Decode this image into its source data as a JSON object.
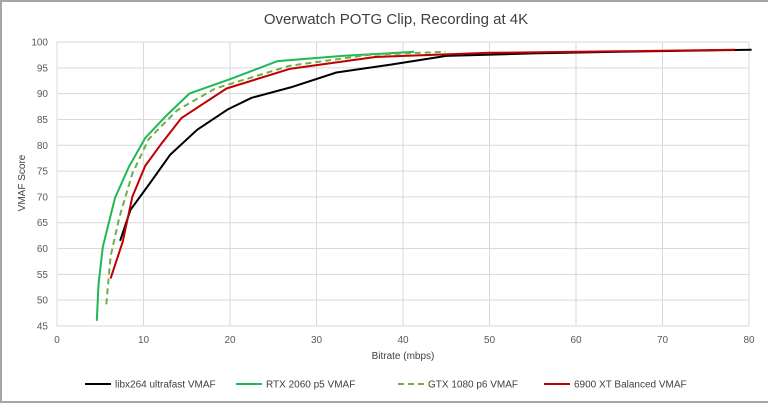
{
  "chart_data": {
    "type": "line",
    "title": "Overwatch POTG Clip, Recording at 4K",
    "xlabel": "Bitrate (mbps)",
    "ylabel": "VMAF Score",
    "xlim": [
      0,
      80
    ],
    "ylim": [
      45,
      100
    ],
    "xticks": [
      0,
      10,
      20,
      30,
      40,
      50,
      60,
      70,
      80
    ],
    "yticks": [
      45,
      50,
      55,
      60,
      65,
      70,
      75,
      80,
      85,
      90,
      95,
      100
    ],
    "grid": true,
    "legend_position": "bottom",
    "series": [
      {
        "name": "libx264 ultrafast VMAF",
        "color": "#000000",
        "dash": false,
        "points": [
          [
            7.3,
            61.5
          ],
          [
            8.5,
            67.5
          ],
          [
            10.8,
            72.8
          ],
          [
            13.1,
            78.2
          ],
          [
            16.2,
            83.0
          ],
          [
            19.8,
            87.0
          ],
          [
            22.5,
            89.2
          ],
          [
            27.0,
            91.2
          ],
          [
            32.3,
            94.1
          ],
          [
            38.5,
            95.6
          ],
          [
            45.0,
            97.3
          ],
          [
            55.0,
            97.8
          ],
          [
            65.0,
            98.1
          ],
          [
            80.3,
            98.5
          ]
        ]
      },
      {
        "name": "RTX 2060 p5 VMAF",
        "color": "#1db954",
        "dash": false,
        "points": [
          [
            4.6,
            46.0
          ],
          [
            4.8,
            53.0
          ],
          [
            5.3,
            60.3
          ],
          [
            6.7,
            69.8
          ],
          [
            8.3,
            75.8
          ],
          [
            10.2,
            81.4
          ],
          [
            12.5,
            85.5
          ],
          [
            15.3,
            90.0
          ],
          [
            20.0,
            92.8
          ],
          [
            25.5,
            96.3
          ],
          [
            33.0,
            97.3
          ],
          [
            41.3,
            98.1
          ]
        ]
      },
      {
        "name": "GTX 1080 p6 VMAF",
        "color": "#70ad47",
        "dash": true,
        "points": [
          [
            5.7,
            49.2
          ],
          [
            6.2,
            58.5
          ],
          [
            7.2,
            66.0
          ],
          [
            8.7,
            74.5
          ],
          [
            10.6,
            81.2
          ],
          [
            13.9,
            86.8
          ],
          [
            18.3,
            91.0
          ],
          [
            26.9,
            95.4
          ],
          [
            36.0,
            97.5
          ],
          [
            44.9,
            98.1
          ]
        ]
      },
      {
        "name": "6900 XT Balanced VMAF",
        "color": "#c00000",
        "dash": false,
        "points": [
          [
            6.2,
            54.2
          ],
          [
            7.6,
            61.3
          ],
          [
            8.7,
            70.0
          ],
          [
            10.2,
            76.0
          ],
          [
            12.2,
            80.6
          ],
          [
            14.4,
            85.3
          ],
          [
            19.6,
            91.0
          ],
          [
            26.9,
            94.8
          ],
          [
            36.8,
            97.1
          ],
          [
            50.0,
            97.9
          ],
          [
            65.0,
            98.2
          ],
          [
            78.4,
            98.5
          ]
        ]
      }
    ]
  }
}
